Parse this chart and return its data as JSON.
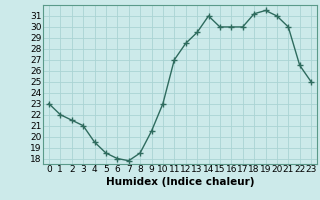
{
  "x": [
    0,
    1,
    2,
    3,
    4,
    5,
    6,
    7,
    8,
    9,
    10,
    11,
    12,
    13,
    14,
    15,
    16,
    17,
    18,
    19,
    20,
    21,
    22,
    23
  ],
  "y": [
    23,
    22,
    21.5,
    21,
    19.5,
    18.5,
    18,
    17.8,
    18.5,
    20.5,
    23,
    27,
    28.5,
    29.5,
    31,
    30,
    30,
    30,
    31.2,
    31.5,
    31,
    30,
    26.5,
    25
  ],
  "line_color": "#2e6b5e",
  "marker_color": "#2e6b5e",
  "bg_color": "#cceaea",
  "grid_color": "#aad4d4",
  "xlabel": "Humidex (Indice chaleur)",
  "xlim": [
    -0.5,
    23.5
  ],
  "ylim": [
    17.5,
    32
  ],
  "yticks": [
    18,
    19,
    20,
    21,
    22,
    23,
    24,
    25,
    26,
    27,
    28,
    29,
    30,
    31
  ],
  "xticks": [
    0,
    1,
    2,
    3,
    4,
    5,
    6,
    7,
    8,
    9,
    10,
    11,
    12,
    13,
    14,
    15,
    16,
    17,
    18,
    19,
    20,
    21,
    22,
    23
  ],
  "xlabel_fontsize": 7.5,
  "tick_fontsize": 6.5,
  "marker_size": 2.5,
  "line_width": 1.0
}
